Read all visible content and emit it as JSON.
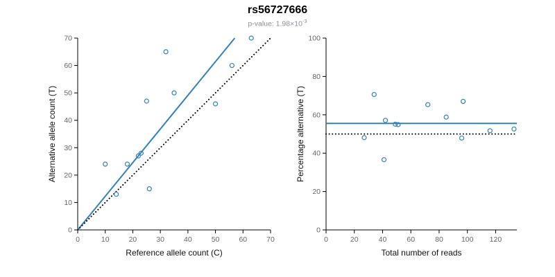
{
  "header": {
    "title": "rs56727666",
    "pvalue_prefix": "p-value: 1.98×10",
    "pvalue_exponent": "-3"
  },
  "colors": {
    "accent_blue": "#3182bd",
    "line_black": "#000000",
    "subtitle_gray": "#8a9199",
    "tick_gray": "#666666"
  },
  "chart_data": [
    {
      "type": "scatter",
      "title": "rs56727666",
      "xlabel": "Reference allele count (C)",
      "ylabel": "Alternative allele count (T)",
      "xlim": [
        0,
        70
      ],
      "ylim": [
        0,
        70
      ],
      "xticks": [
        0,
        10,
        20,
        30,
        40,
        50,
        60,
        70
      ],
      "yticks": [
        0,
        10,
        20,
        30,
        40,
        50,
        60,
        70
      ],
      "grid": false,
      "legend": false,
      "point_color": "#3182bd",
      "points": [
        [
          10,
          24
        ],
        [
          14,
          13
        ],
        [
          18,
          24
        ],
        [
          22,
          27
        ],
        [
          23,
          28
        ],
        [
          25,
          47
        ],
        [
          26,
          15
        ],
        [
          32,
          65
        ],
        [
          35,
          50
        ],
        [
          50,
          46
        ],
        [
          56,
          60
        ],
        [
          63,
          70
        ]
      ],
      "lines": [
        {
          "name": "regression-line",
          "x": [
            0,
            57
          ],
          "y": [
            0,
            70
          ],
          "color": "#3182bd",
          "style": "solid",
          "width": 2
        },
        {
          "name": "identity-line",
          "x": [
            0,
            70
          ],
          "y": [
            0,
            70
          ],
          "color": "#000000",
          "style": "dotted",
          "width": 2
        }
      ]
    },
    {
      "type": "scatter",
      "title": "",
      "xlabel": "Total number of reads",
      "ylabel": "Percentage alternative (T)",
      "xlim": [
        0,
        135
      ],
      "ylim": [
        0,
        100
      ],
      "xticks": [
        0,
        20,
        40,
        60,
        80,
        100,
        120
      ],
      "yticks": [
        0,
        20,
        40,
        60,
        80,
        100
      ],
      "grid": false,
      "legend": false,
      "point_color": "#3182bd",
      "points": [
        [
          34,
          70.6
        ],
        [
          27,
          48.1
        ],
        [
          42,
          57.1
        ],
        [
          49,
          55.1
        ],
        [
          51,
          54.9
        ],
        [
          72,
          65.3
        ],
        [
          41,
          36.6
        ],
        [
          97,
          67.0
        ],
        [
          85,
          58.8
        ],
        [
          96,
          47.9
        ],
        [
          116,
          51.7
        ],
        [
          133,
          52.6
        ]
      ],
      "lines": [
        {
          "name": "mean-percentage-line",
          "x": [
            0,
            135
          ],
          "y": [
            55.5,
            55.5
          ],
          "color": "#3182bd",
          "style": "solid",
          "width": 2
        },
        {
          "name": "expected-percentage-line",
          "x": [
            0,
            135
          ],
          "y": [
            50,
            50
          ],
          "color": "#000000",
          "style": "dotted",
          "width": 2
        }
      ]
    }
  ]
}
